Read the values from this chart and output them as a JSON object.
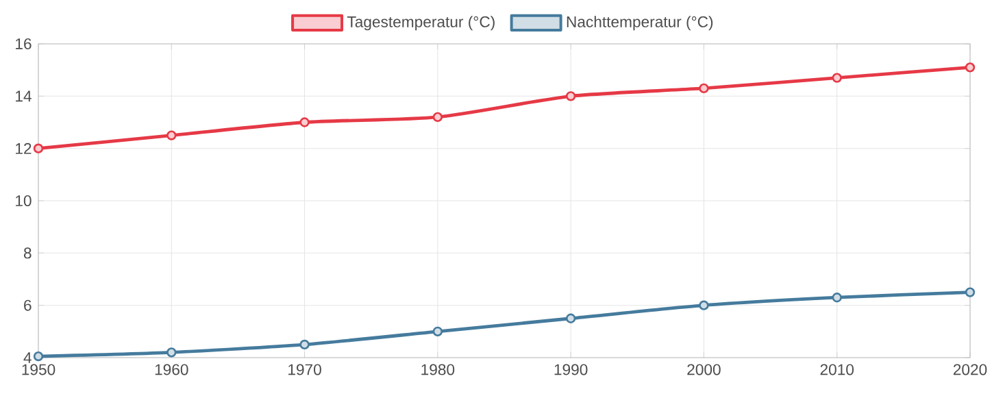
{
  "chart_data": {
    "type": "line",
    "x": [
      1950,
      1960,
      1970,
      1980,
      1990,
      2000,
      2010,
      2020
    ],
    "series": [
      {
        "name": "Tagestemperatur (°C)",
        "color": "#e63946",
        "values": [
          12,
          12.5,
          13,
          13.2,
          14,
          14.3,
          14.7,
          15.1
        ]
      },
      {
        "name": "Nachttemperatur (°C)",
        "color": "#457b9d",
        "values": [
          4.05,
          4.2,
          4.5,
          5,
          5.5,
          6,
          6.3,
          6.5
        ]
      }
    ],
    "xlim": [
      1950,
      2020
    ],
    "xticks": [
      1950,
      1960,
      1970,
      1980,
      1990,
      2000,
      2010,
      2020
    ],
    "ylim": [
      4,
      16
    ],
    "yticks": [
      4,
      6,
      8,
      10,
      12,
      14,
      16
    ],
    "grid": true,
    "legend": "top",
    "marker": "circle",
    "line_style": "solid"
  }
}
